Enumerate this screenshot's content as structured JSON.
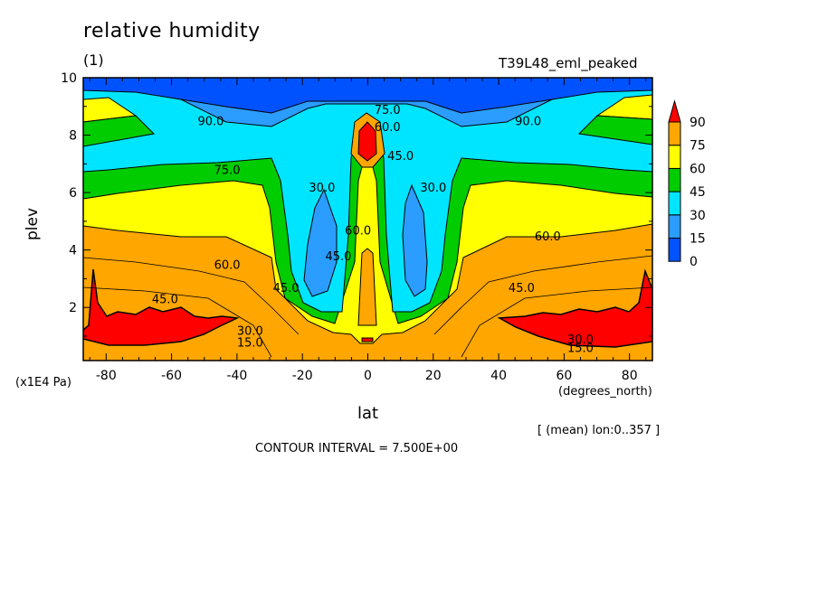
{
  "chart_data": {
    "type": "heatmap",
    "title": "relative humidity",
    "subtitle": "(1)",
    "run_label": "T39L48_eml_peaked",
    "xlabel": "lat",
    "xunit": "(degrees_north)",
    "ylabel": "plev",
    "yunit": "(x1E4 Pa)",
    "xlim": [
      -87,
      87
    ],
    "ylim": [
      10,
      0.15
    ],
    "x_ticks": [
      -80,
      -60,
      -40,
      -20,
      0,
      20,
      40,
      60,
      80
    ],
    "y_ticks": [
      2,
      4,
      6,
      8,
      10
    ],
    "contour_interval": 7.5,
    "levels": [
      15,
      30,
      45,
      60,
      75,
      90
    ],
    "colorbar": {
      "labels": [
        "90",
        "75",
        "60",
        "45",
        "30",
        "15",
        "0"
      ],
      "colors": [
        "#0052ff",
        "#2a9dff",
        "#00e5ff",
        "#00cc00",
        "#ffff00",
        "#ffa600",
        "#ff0000"
      ]
    },
    "contour_labels": [
      {
        "text": "15.0",
        "lat": -36,
        "plev": 0.8
      },
      {
        "text": "30.0",
        "lat": -36,
        "plev": 1.2
      },
      {
        "text": "45.0",
        "lat": -62,
        "plev": 2.3
      },
      {
        "text": "60.0",
        "lat": -43,
        "plev": 3.5
      },
      {
        "text": "75.0",
        "lat": -43,
        "plev": 6.8
      },
      {
        "text": "90.0",
        "lat": -48,
        "plev": 8.5
      },
      {
        "text": "45.0",
        "lat": -25,
        "plev": 2.7
      },
      {
        "text": "45.0",
        "lat": -9,
        "plev": 3.8
      },
      {
        "text": "30.0",
        "lat": -14,
        "plev": 6.2
      },
      {
        "text": "60.0",
        "lat": -3,
        "plev": 4.7
      },
      {
        "text": "45.0",
        "lat": 10,
        "plev": 7.3
      },
      {
        "text": "60.0",
        "lat": 6,
        "plev": 8.3
      },
      {
        "text": "75.0",
        "lat": 6,
        "plev": 8.9
      },
      {
        "text": "30.0",
        "lat": 20,
        "plev": 6.2
      },
      {
        "text": "45.0",
        "lat": 47,
        "plev": 2.7
      },
      {
        "text": "60.0",
        "lat": 55,
        "plev": 4.5
      },
      {
        "text": "90.0",
        "lat": 49,
        "plev": 8.5
      },
      {
        "text": "15.0",
        "lat": 65,
        "plev": 0.6
      },
      {
        "text": "30.0",
        "lat": 65,
        "plev": 0.9
      }
    ],
    "mean_note": "[ (mean) lon:0..357 ]",
    "contour_note": "CONTOUR INTERVAL = 7.500E+00"
  }
}
